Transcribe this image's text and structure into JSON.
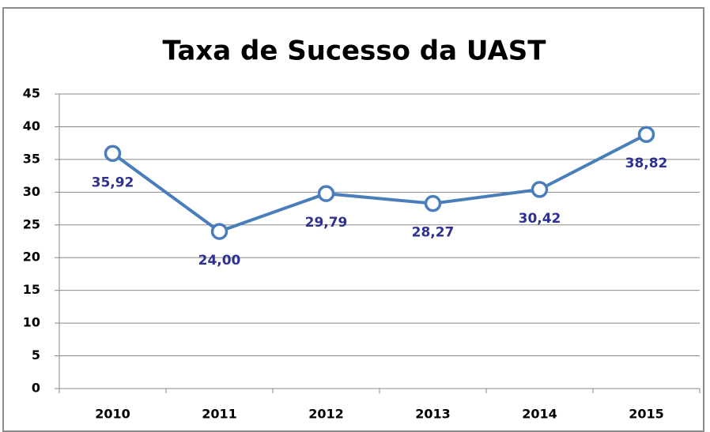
{
  "chart_data": {
    "type": "line",
    "title": "Taxa de Sucesso da UAST",
    "categories": [
      "2010",
      "2011",
      "2012",
      "2013",
      "2014",
      "2015"
    ],
    "values": [
      35.92,
      24.0,
      29.79,
      28.27,
      30.42,
      38.82
    ],
    "value_labels": [
      "35,92",
      "24,00",
      "29,79",
      "28,27",
      "30,42",
      "38,82"
    ],
    "color": "#4a7ebb",
    "label_color": "#2e3192",
    "ylim": [
      0,
      45
    ],
    "yticks": [
      0,
      5,
      10,
      15,
      20,
      25,
      30,
      35,
      40,
      45
    ],
    "grid": true
  }
}
